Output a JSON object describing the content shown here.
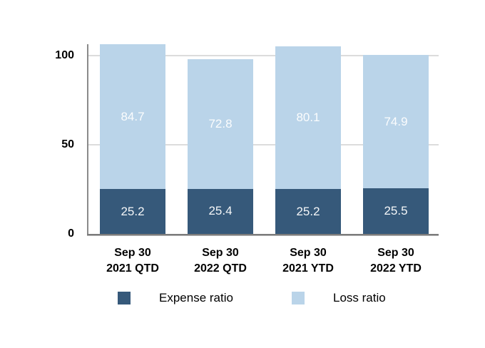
{
  "chart_data": {
    "type": "bar",
    "stacked": true,
    "title": "",
    "xlabel": "",
    "ylabel": "",
    "categories": [
      "Sep 30\n2021 QTD",
      "Sep 30\n2022 QTD",
      "Sep 30\n2021 YTD",
      "Sep 30\n2022 YTD"
    ],
    "series": [
      {
        "name": "Expense ratio",
        "color": "#36597A",
        "values": [
          25.2,
          25.4,
          25.2,
          25.5
        ]
      },
      {
        "name": "Loss ratio",
        "color": "#BAD4E9",
        "values": [
          84.7,
          72.8,
          80.1,
          74.9
        ]
      }
    ],
    "yticks": [
      0,
      50,
      100
    ],
    "ylim": [
      0,
      106.4
    ],
    "grid": true,
    "bars_clipped_at_plot_top": true,
    "legend_position": "bottom",
    "value_label_color": "#FFFFFF",
    "grid_color": "#dcdcdc",
    "axis_color": "#7b7b7b",
    "tick_label_color": "#000000"
  }
}
